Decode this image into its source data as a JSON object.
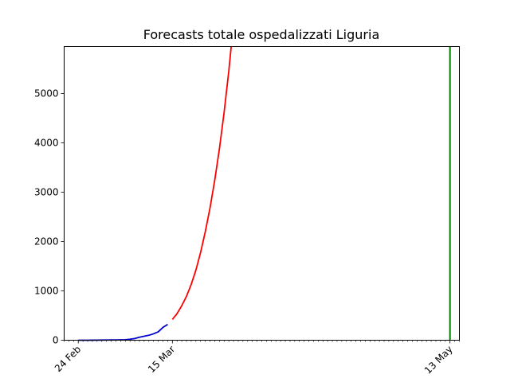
{
  "chart_data": {
    "type": "line",
    "title": "Forecasts totale ospedalizzati Liguria",
    "xlabel": "",
    "ylabel": "",
    "x_axis": {
      "type": "date",
      "range": [
        "2020-02-21",
        "2020-05-15"
      ],
      "major_ticks": [
        {
          "date": "2020-02-24",
          "label": "24 Feb"
        },
        {
          "date": "2020-03-15",
          "label": "15 Mar"
        },
        {
          "date": "2020-05-13",
          "label": "13 May"
        }
      ],
      "minor_ticks": "daily"
    },
    "y_axis": {
      "range": [
        0,
        5950
      ],
      "ticks": [
        0,
        1000,
        2000,
        3000,
        4000,
        5000
      ]
    },
    "grid": false,
    "legend": "none",
    "series": [
      {
        "color": "#0000cc",
        "points": [
          [
            "2020-02-24",
            0
          ],
          [
            "2020-02-25",
            0
          ],
          [
            "2020-02-26",
            0
          ],
          [
            "2020-02-27",
            1
          ],
          [
            "2020-02-28",
            2
          ],
          [
            "2020-02-29",
            3
          ],
          [
            "2020-03-01",
            4
          ],
          [
            "2020-03-02",
            5
          ],
          [
            "2020-03-03",
            6
          ],
          [
            "2020-03-04",
            8
          ],
          [
            "2020-03-05",
            10
          ],
          [
            "2020-03-06",
            20
          ],
          [
            "2020-03-07",
            35
          ],
          [
            "2020-03-08",
            60
          ],
          [
            "2020-03-09",
            80
          ],
          [
            "2020-03-10",
            100
          ],
          [
            "2020-03-11",
            130
          ],
          [
            "2020-03-12",
            170
          ],
          [
            "2020-03-13",
            260
          ],
          [
            "2020-03-14",
            320
          ]
        ]
      },
      {
        "color": "#ff0000",
        "points": [
          [
            "2020-03-15",
            420
          ],
          [
            "2020-03-16",
            540
          ],
          [
            "2020-03-17",
            700
          ],
          [
            "2020-03-18",
            890
          ],
          [
            "2020-03-19",
            1130
          ],
          [
            "2020-03-20",
            1420
          ],
          [
            "2020-03-21",
            1780
          ],
          [
            "2020-03-22",
            2200
          ],
          [
            "2020-03-23",
            2680
          ],
          [
            "2020-03-24",
            3240
          ],
          [
            "2020-03-25",
            3880
          ],
          [
            "2020-03-26",
            4620
          ],
          [
            "2020-03-27",
            5460
          ],
          [
            "2020-03-27T12:00",
            5950
          ]
        ]
      }
    ],
    "vertical_lines": [
      {
        "date": "2020-05-13",
        "color": "#008000"
      }
    ]
  }
}
